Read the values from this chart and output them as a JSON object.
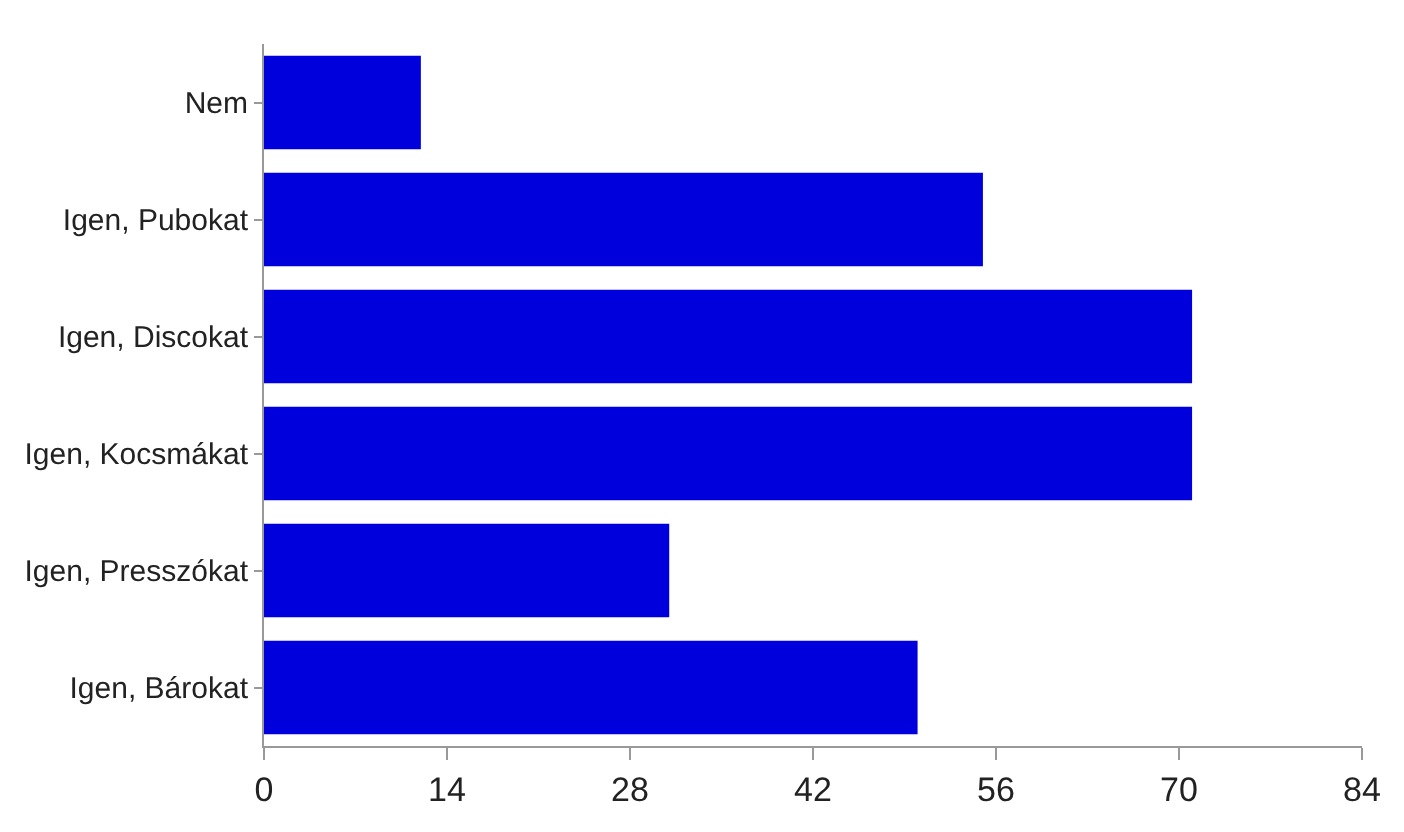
{
  "chart_data": {
    "type": "bar",
    "orientation": "horizontal",
    "categories": [
      "Nem",
      "Igen, Pubokat",
      "Igen, Discokat",
      "Igen, Kocsmákat",
      "Igen, Presszókat",
      "Igen, Bárokat"
    ],
    "values": [
      12,
      55,
      71,
      71,
      31,
      50
    ],
    "color": "#0000dd",
    "xlim": [
      0,
      84
    ],
    "xticks": [
      0,
      14,
      28,
      42,
      56,
      70,
      84
    ]
  }
}
